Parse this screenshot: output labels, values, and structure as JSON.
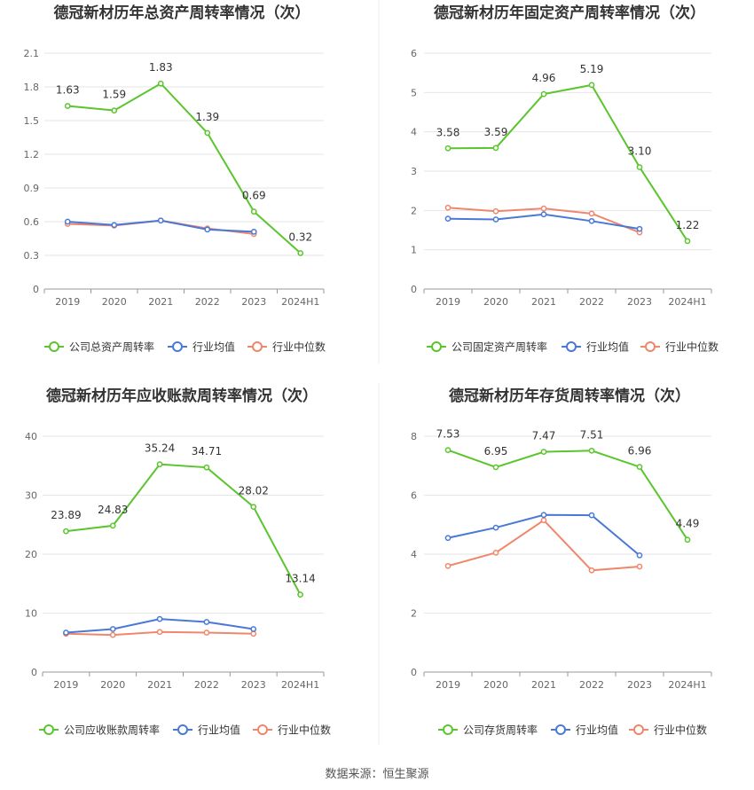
{
  "source_label": "数据来源：恒生聚源",
  "colors": {
    "company": "#5ac52d",
    "industry_avg": "#4a78d6",
    "industry_median": "#f0866b"
  },
  "chart_data": [
    {
      "type": "line",
      "title": "德冠新材历年总资产周转率情况（次）",
      "categories": [
        "2019",
        "2020",
        "2021",
        "2022",
        "2023",
        "2024H1"
      ],
      "ylim": [
        0,
        2.1
      ],
      "yticks": [
        "0",
        "0.3",
        "0.6",
        "0.9",
        "1.2",
        "1.5",
        "1.8",
        "2.1"
      ],
      "grid": true,
      "legend_position": "bottom",
      "series": [
        {
          "name": "公司总资产周转率",
          "values": [
            1.63,
            1.59,
            1.83,
            1.39,
            0.69,
            0.32
          ],
          "labels": [
            "1.63",
            "1.59",
            "1.83",
            "1.39",
            "0.69",
            "0.32"
          ]
        },
        {
          "name": "行业均值",
          "values": [
            0.6,
            0.57,
            0.61,
            0.53,
            0.51,
            null
          ]
        },
        {
          "name": "行业中位数",
          "values": [
            0.58,
            0.565,
            0.61,
            0.54,
            0.49,
            null
          ]
        }
      ]
    },
    {
      "type": "line",
      "title": "德冠新材历年固定资产周转率情况（次）",
      "categories": [
        "2019",
        "2020",
        "2021",
        "2022",
        "2023",
        "2024H1"
      ],
      "ylim": [
        0,
        6
      ],
      "yticks": [
        "0",
        "1",
        "2",
        "3",
        "4",
        "5",
        "6"
      ],
      "grid": true,
      "legend_position": "bottom",
      "series": [
        {
          "name": "公司固定资产周转率",
          "values": [
            3.58,
            3.59,
            4.96,
            5.19,
            3.1,
            1.22
          ],
          "labels": [
            "3.58",
            "3.59",
            "4.96",
            "5.19",
            "3.10",
            "1.22"
          ]
        },
        {
          "name": "行业均值",
          "values": [
            1.79,
            1.77,
            1.9,
            1.73,
            1.53,
            null
          ]
        },
        {
          "name": "行业中位数",
          "values": [
            2.07,
            1.98,
            2.05,
            1.92,
            1.44,
            null
          ]
        }
      ]
    },
    {
      "type": "line",
      "title": "德冠新材历年应收账款周转率情况（次）",
      "categories": [
        "2019",
        "2020",
        "2021",
        "2022",
        "2023",
        "2024H1"
      ],
      "ylim": [
        0,
        40
      ],
      "yticks": [
        "0",
        "10",
        "20",
        "30",
        "40"
      ],
      "grid": true,
      "legend_position": "bottom",
      "series": [
        {
          "name": "公司应收账款周转率",
          "values": [
            23.89,
            24.83,
            35.24,
            34.71,
            28.02,
            13.14
          ],
          "labels": [
            "23.89",
            "24.83",
            "35.24",
            "34.71",
            "28.02",
            "13.14"
          ]
        },
        {
          "name": "行业均值",
          "values": [
            6.7,
            7.3,
            9.0,
            8.5,
            7.3,
            null
          ]
        },
        {
          "name": "行业中位数",
          "values": [
            6.5,
            6.3,
            6.8,
            6.7,
            6.5,
            null
          ]
        }
      ]
    },
    {
      "type": "line",
      "title": "德冠新材历年存货周转率情况（次）",
      "categories": [
        "2019",
        "2020",
        "2021",
        "2022",
        "2023",
        "2024H1"
      ],
      "ylim": [
        0,
        8
      ],
      "yticks": [
        "0",
        "2",
        "4",
        "6",
        "8"
      ],
      "grid": true,
      "legend_position": "bottom",
      "series": [
        {
          "name": "公司存货周转率",
          "values": [
            7.53,
            6.95,
            7.47,
            7.51,
            6.96,
            4.49
          ],
          "labels": [
            "7.53",
            "6.95",
            "7.47",
            "7.51",
            "6.96",
            "4.49"
          ]
        },
        {
          "name": "行业均值",
          "values": [
            4.55,
            4.9,
            5.33,
            5.32,
            3.96,
            null
          ]
        },
        {
          "name": "行业中位数",
          "values": [
            3.6,
            4.05,
            5.15,
            3.45,
            3.58,
            null
          ]
        }
      ]
    }
  ]
}
